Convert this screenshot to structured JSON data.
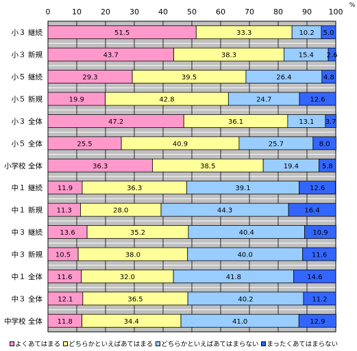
{
  "chart_data": {
    "type": "bar",
    "orientation": "horizontal",
    "stacked": true,
    "percent_symbol": "%",
    "xlim": [
      0,
      100
    ],
    "xticks": [
      0,
      10,
      20,
      30,
      40,
      50,
      60,
      70,
      80,
      90,
      100
    ],
    "categories": [
      "小３ 継続",
      "小３ 新規",
      "小５ 継続",
      "小５ 新規",
      "小３ 全体",
      "小５ 全体",
      "小学校 全体",
      "中１ 継続",
      "中１ 新規",
      "中３ 継続",
      "中３ 新規",
      "中１ 全体",
      "中３ 全体",
      "中学校 全体"
    ],
    "series": [
      {
        "name": "よくあてはまる",
        "color": "#ff99cc",
        "values": [
          51.5,
          43.7,
          29.3,
          19.9,
          47.2,
          25.5,
          36.3,
          11.9,
          11.3,
          13.6,
          10.5,
          11.6,
          12.1,
          11.8
        ]
      },
      {
        "name": "どちらかといえばあてはまる",
        "color": "#ffff99",
        "values": [
          33.3,
          38.3,
          39.5,
          42.8,
          36.1,
          40.9,
          38.5,
          36.3,
          28.0,
          35.2,
          38.0,
          32.0,
          36.5,
          34.4
        ]
      },
      {
        "name": "どちらかといえばあてはまらない",
        "color": "#99ccff",
        "values": [
          10.2,
          15.4,
          26.4,
          24.7,
          13.1,
          25.7,
          19.4,
          39.1,
          44.3,
          40.4,
          40.0,
          41.8,
          40.2,
          41.0
        ]
      },
      {
        "name": "まったくあてはまらない",
        "color": "#3366ff",
        "values": [
          5.0,
          2.6,
          4.8,
          12.6,
          3.7,
          8.0,
          5.8,
          12.6,
          16.4,
          10.9,
          11.6,
          14.6,
          11.2,
          12.9
        ]
      }
    ],
    "value_labels": [
      [
        "51.5",
        "33.3",
        "10.2",
        "5.0"
      ],
      [
        "43.7",
        "38.3",
        "15.4",
        "2.6"
      ],
      [
        "29.3",
        "39.5",
        "26.4",
        "4.8"
      ],
      [
        "19.9",
        "42.8",
        "24.7",
        "12.6"
      ],
      [
        "47.2",
        "36.1",
        "13.1",
        "3.7"
      ],
      [
        "25.5",
        "40.9",
        "25.7",
        "8.0"
      ],
      [
        "36.3",
        "38.5",
        "19.4",
        "5.8"
      ],
      [
        "11.9",
        "36.3",
        "39.1",
        "12.6"
      ],
      [
        "11.3",
        "28.0",
        "44.3",
        "16.4"
      ],
      [
        "13.6",
        "35.2",
        "40.4",
        "10.9"
      ],
      [
        "10.5",
        "38.0",
        "40.0",
        "11.6"
      ],
      [
        "11.6",
        "32.0",
        "41.8",
        "14.6"
      ],
      [
        "12.1",
        "36.5",
        "40.2",
        "11.2"
      ],
      [
        "11.8",
        "34.4",
        "41.0",
        "12.9"
      ]
    ],
    "grid": true,
    "plot_background": "#c0c0c0",
    "legend_position": "bottom"
  }
}
